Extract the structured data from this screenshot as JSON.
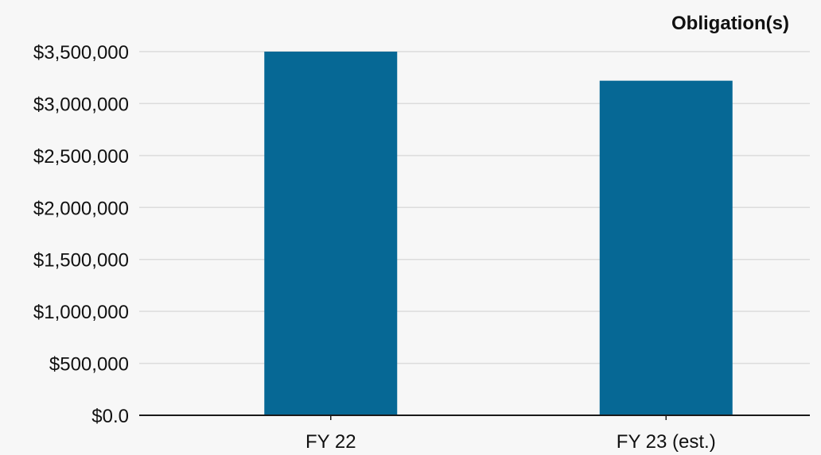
{
  "chart_data": {
    "type": "bar",
    "categories": [
      "FY 22",
      "FY 23 (est.)"
    ],
    "series": [
      {
        "name": "Obligation(s)",
        "values": [
          3500000,
          3220000
        ],
        "color": "#066895"
      }
    ],
    "y_ticks": [
      0,
      500000,
      1000000,
      1500000,
      2000000,
      2500000,
      3000000,
      3500000
    ],
    "y_tick_labels": [
      "$0.0",
      "$500,000",
      "$1,000,000",
      "$1,500,000",
      "$2,000,000",
      "$2,500,000",
      "$3,000,000",
      "$3,500,000"
    ],
    "ylim": [
      0,
      3500000
    ],
    "grid": true,
    "legend_position": "top-right",
    "title": "",
    "xlabel": "",
    "ylabel": ""
  }
}
